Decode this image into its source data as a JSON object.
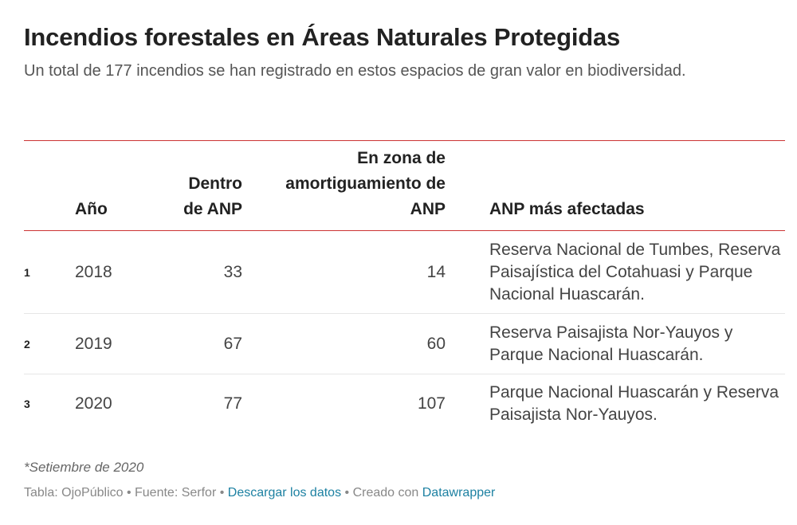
{
  "title": "Incendios forestales en Áreas Naturales Protegidas",
  "subtitle": "Un total de 177 incendios se han registrado en estos espacios de gran valor en biodiversidad.",
  "chart_data": {
    "type": "table",
    "columns": [
      "",
      "Año",
      "Dentro de ANP",
      "En zona de amortiguamiento de ANP",
      "ANP más afectadas"
    ],
    "rows": [
      {
        "index": "1",
        "year": "2018",
        "inside": 33,
        "buffer": 14,
        "affected": "Reserva Nacional de Tumbes, Reserva Paisajística del Cotahuasi y Parque Nacional Huascarán."
      },
      {
        "index": "2",
        "year": "2019",
        "inside": 67,
        "buffer": 60,
        "affected": "Reserva Paisajista Nor-Yauyos y Parque Nacional Huascarán."
      },
      {
        "index": "3",
        "year": "2020",
        "inside": 77,
        "buffer": 107,
        "affected": "Parque Nacional Huascarán y Reserva Paisajista Nor-Yauyos."
      }
    ],
    "colors": {
      "rule": "#cc3333",
      "link": "#1d81a2"
    }
  },
  "notes": "*Setiembre de 2020",
  "footer": {
    "source": "Tabla: OjoPúblico • Fuente: Serfor • ",
    "download": "Descargar los datos",
    "separator": " • Creado con ",
    "tool": "Datawrapper"
  }
}
